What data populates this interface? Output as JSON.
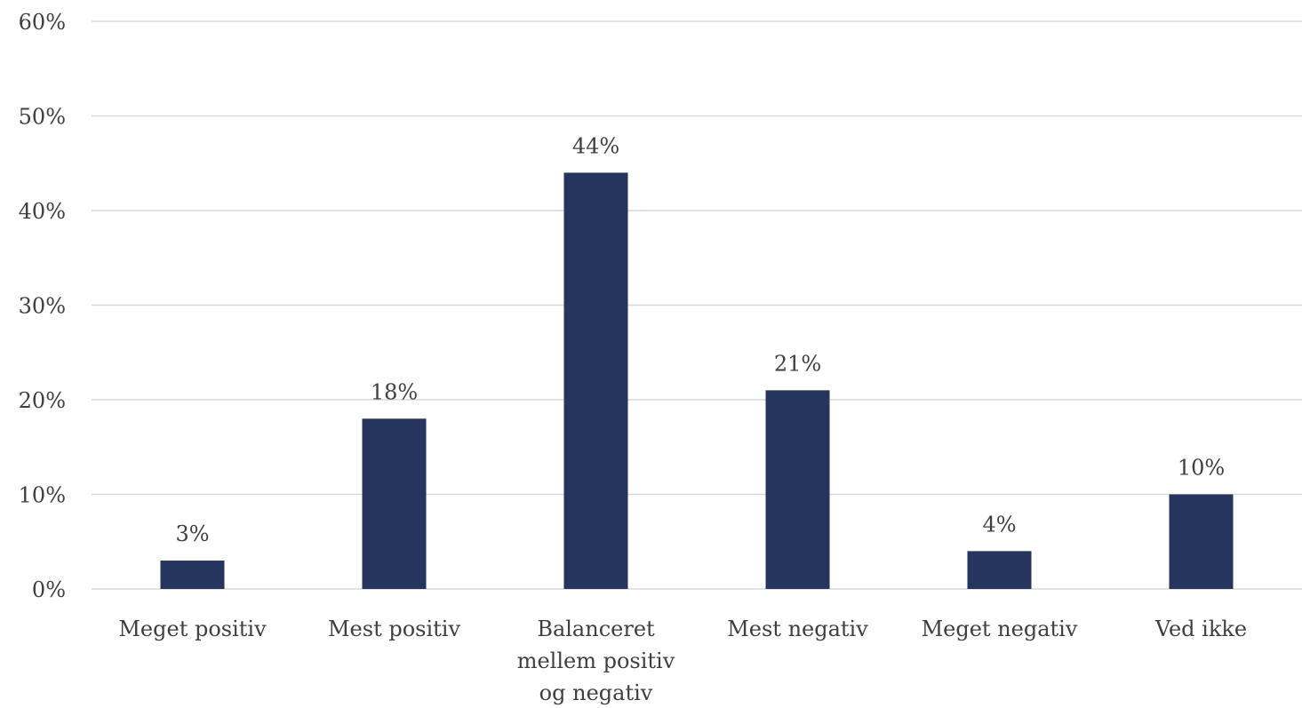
{
  "chart_data": {
    "type": "bar",
    "categories": [
      [
        "Meget positiv"
      ],
      [
        "Mest positiv"
      ],
      [
        "Balanceret",
        "mellem positiv",
        "og negativ"
      ],
      [
        "Mest negativ"
      ],
      [
        "Meget negativ"
      ],
      [
        "Ved ikke"
      ]
    ],
    "values": [
      3,
      18,
      44,
      21,
      4,
      10
    ],
    "data_labels": [
      "3%",
      "18%",
      "44%",
      "21%",
      "4%",
      "10%"
    ],
    "y_ticks": [
      0,
      10,
      20,
      30,
      40,
      50,
      60
    ],
    "y_tick_labels": [
      "0%",
      "10%",
      "20%",
      "30%",
      "40%",
      "50%",
      "60%"
    ],
    "ylim": [
      0,
      60
    ],
    "grid": true,
    "legend": "none",
    "colors": {
      "bar": "#26355d",
      "grid": "#d9d9d9",
      "text": "#3f3f3f"
    }
  }
}
